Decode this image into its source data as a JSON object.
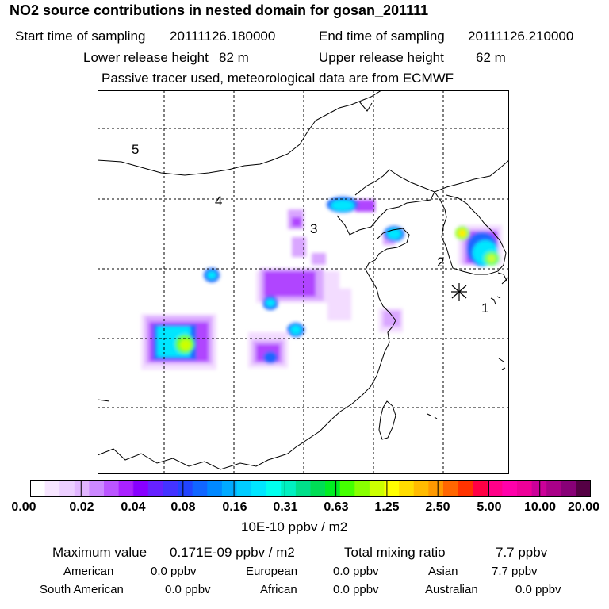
{
  "header": {
    "title": "NO2 source contributions in nested domain for gosan_201111",
    "start_label": "Start time of sampling",
    "start_value": "20111126.180000",
    "end_label": "End time of sampling",
    "end_value": "20111126.210000",
    "lower_label": "Lower release height",
    "lower_value": "82 m",
    "upper_label": "Upper release height",
    "upper_value": "62 m",
    "note": "Passive tracer used, meteorological data are from ECMWF"
  },
  "map": {
    "receptor_marker": "asterisk-icon",
    "region_labels": [
      "1",
      "2",
      "3",
      "4",
      "5"
    ],
    "plume_color_scale": "white-purple-blue-cyan-green-yellow"
  },
  "colorbar": {
    "colors": [
      "#ffffff",
      "#f7e6ff",
      "#eccfff",
      "#e1b5ff",
      "#cc88ff",
      "#bb55ff",
      "#aa22ff",
      "#8800ff",
      "#6622ff",
      "#4433ff",
      "#2244ff",
      "#1166ff",
      "#0088ff",
      "#00aaff",
      "#00ccff",
      "#00e6ff",
      "#00ffee",
      "#00f0c0",
      "#00e08a",
      "#00dd55",
      "#00ee22",
      "#44ff00",
      "#88ff00",
      "#ccff00",
      "#ffff00",
      "#ffdd00",
      "#ffbb00",
      "#ff9900",
      "#ff6600",
      "#ff3300",
      "#ff0044",
      "#ff0088",
      "#ff00aa",
      "#ee0099",
      "#cc0099",
      "#aa0088",
      "#880077",
      "#550044"
    ],
    "tick_labels": [
      "0.00",
      "0.02",
      "0.04",
      "0.08",
      "0.16",
      "0.31",
      "0.63",
      "1.25",
      "2.50",
      "5.00",
      "10.00",
      "20.00"
    ],
    "unit": "10E-10 ppbv / m2"
  },
  "stats": {
    "max_label": "Maximum value",
    "max_value": "0.171E-09 ppbv / m2",
    "total_label": "Total mixing ratio",
    "total_value": "7.7 ppbv",
    "regions": [
      {
        "name": "American",
        "value": "0.0 ppbv"
      },
      {
        "name": "European",
        "value": "0.0 ppbv"
      },
      {
        "name": "Asian",
        "value": "7.7 ppbv"
      },
      {
        "name": "South American",
        "value": "0.0 ppbv"
      },
      {
        "name": "African",
        "value": "0.0 ppbv"
      },
      {
        "name": "Australian",
        "value": "0.0 ppbv"
      }
    ]
  }
}
